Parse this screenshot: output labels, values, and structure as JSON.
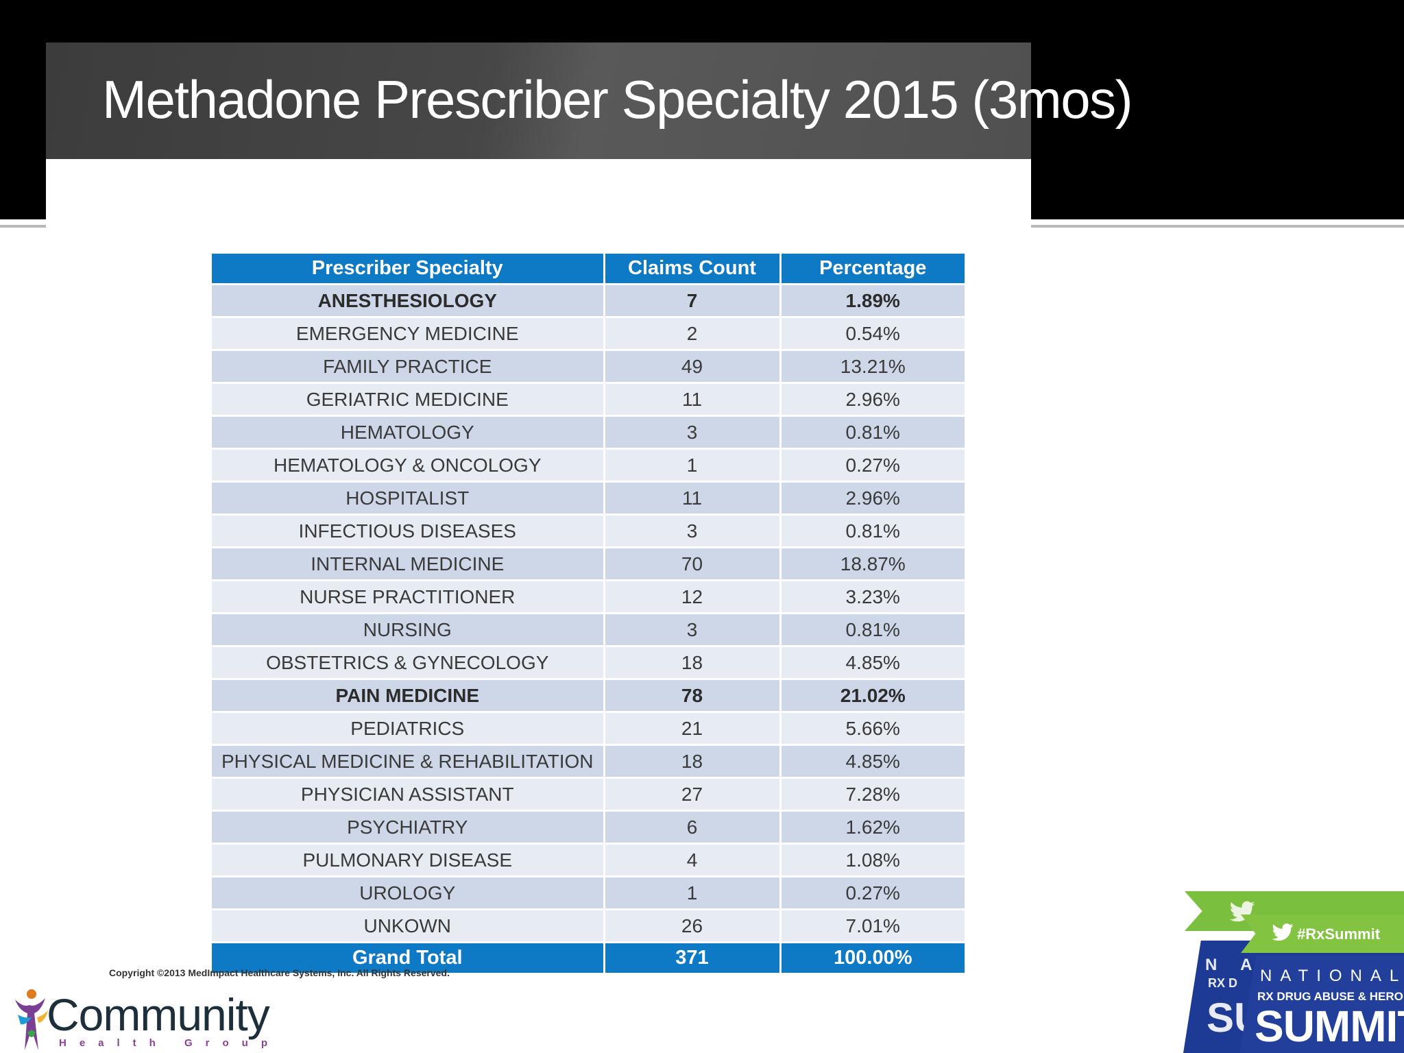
{
  "slide": {
    "title": "Methadone Prescriber Specialty 2015 (3mos)"
  },
  "table": {
    "headers": [
      "Prescriber Specialty",
      "Claims Count",
      "Percentage"
    ],
    "rows": [
      {
        "specialty": "ANESTHESIOLOGY",
        "count": "7",
        "percent": "1.89%",
        "bold": true
      },
      {
        "specialty": "EMERGENCY MEDICINE",
        "count": "2",
        "percent": "0.54%",
        "bold": false
      },
      {
        "specialty": "FAMILY PRACTICE",
        "count": "49",
        "percent": "13.21%",
        "bold": false
      },
      {
        "specialty": "GERIATRIC MEDICINE",
        "count": "11",
        "percent": "2.96%",
        "bold": false
      },
      {
        "specialty": "HEMATOLOGY",
        "count": "3",
        "percent": "0.81%",
        "bold": false
      },
      {
        "specialty": "HEMATOLOGY & ONCOLOGY",
        "count": "1",
        "percent": "0.27%",
        "bold": false
      },
      {
        "specialty": "HOSPITALIST",
        "count": "11",
        "percent": "2.96%",
        "bold": false
      },
      {
        "specialty": "INFECTIOUS DISEASES",
        "count": "3",
        "percent": "0.81%",
        "bold": false
      },
      {
        "specialty": "INTERNAL MEDICINE",
        "count": "70",
        "percent": "18.87%",
        "bold": false
      },
      {
        "specialty": "NURSE PRACTITIONER",
        "count": "12",
        "percent": "3.23%",
        "bold": false
      },
      {
        "specialty": "NURSING",
        "count": "3",
        "percent": "0.81%",
        "bold": false
      },
      {
        "specialty": "OBSTETRICS & GYNECOLOGY",
        "count": "18",
        "percent": "4.85%",
        "bold": false
      },
      {
        "specialty": "PAIN MEDICINE",
        "count": "78",
        "percent": "21.02%",
        "bold": true
      },
      {
        "specialty": "PEDIATRICS",
        "count": "21",
        "percent": "5.66%",
        "bold": false
      },
      {
        "specialty": "PHYSICAL MEDICINE & REHABILITATION",
        "count": "18",
        "percent": "4.85%",
        "bold": false
      },
      {
        "specialty": "PHYSICIAN ASSISTANT",
        "count": "27",
        "percent": "7.28%",
        "bold": false
      },
      {
        "specialty": "PSYCHIATRY",
        "count": "6",
        "percent": "1.62%",
        "bold": false
      },
      {
        "specialty": "PULMONARY DISEASE",
        "count": "4",
        "percent": "1.08%",
        "bold": false
      },
      {
        "specialty": "UROLOGY",
        "count": "1",
        "percent": "0.27%",
        "bold": false
      },
      {
        "specialty": "UNKOWN",
        "count": "26",
        "percent": "7.01%",
        "bold": false
      }
    ],
    "total": {
      "label": "Grand Total",
      "count": "371",
      "percent": "100.00%"
    }
  },
  "footer": {
    "copyright": "Copyright ©2013 MedImpact Healthcare Systems, Inc. All Rights Reserved.",
    "logo_name": "Community",
    "logo_sub": "Health Group"
  },
  "summit_badge": {
    "hashtag": "#RxSummit",
    "national": "NATIONAL",
    "subtitle": "RX DRUG ABUSE & HEROIN",
    "summit": "SUMMIT"
  },
  "colors": {
    "header_blue": "#0e7ac6",
    "row_dark": "#ced7e8",
    "row_light": "#e7ebf2",
    "title_bar": "#474747",
    "badge_green": "#82c341",
    "badge_blue": "#1d3a94",
    "logo_purple": "#8b3f96"
  },
  "icons": [
    "twitter-bird-icon",
    "community-figure-icon"
  ]
}
